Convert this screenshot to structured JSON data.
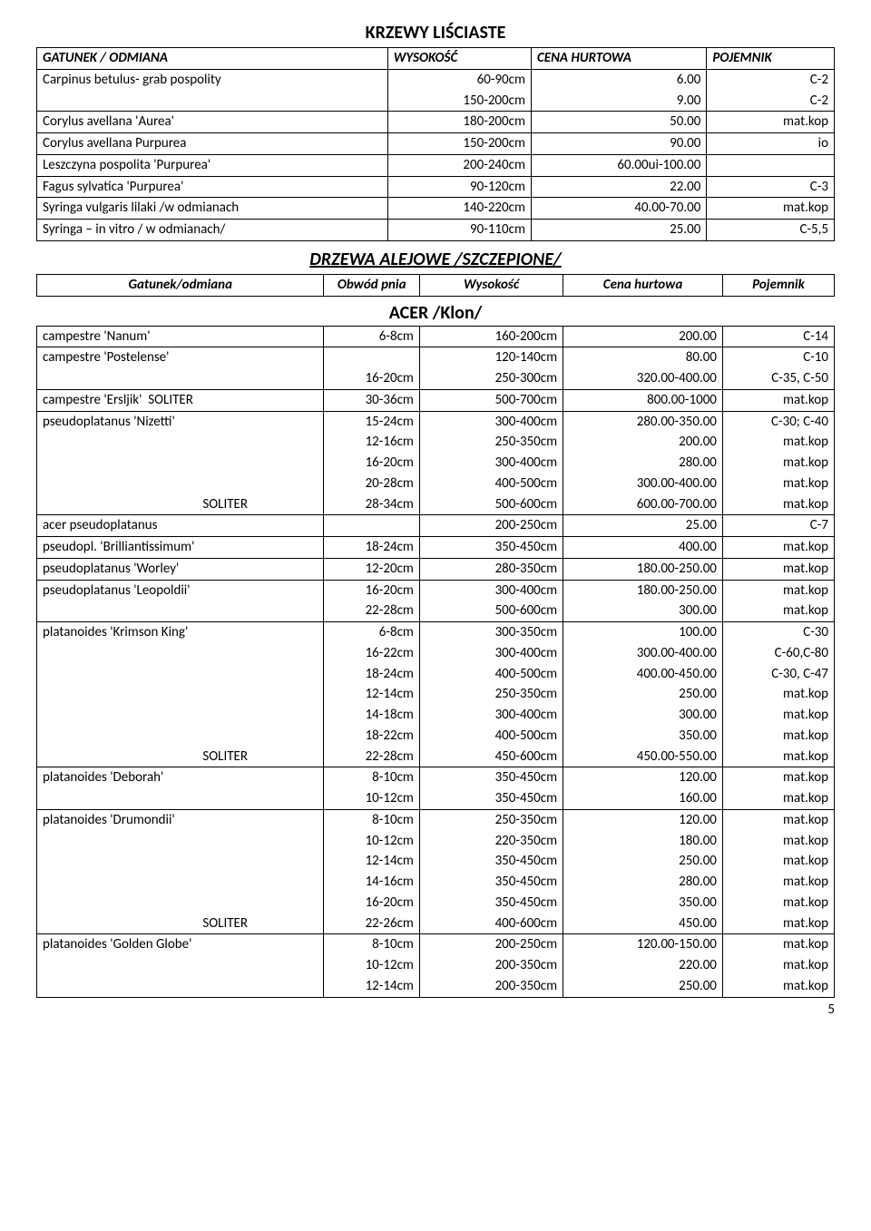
{
  "section1": {
    "title": "KRZEWY LIŚCIASTE",
    "headers": [
      "GATUNEK / ODMIANA",
      "WYSOKOŚĆ",
      "CENA HURTOWA",
      "POJEMNIK"
    ],
    "rows": [
      {
        "name": "Carpinus betulus- grab pospolity",
        "h": "60-90cm",
        "c": "6.00",
        "p": "C-2",
        "tb": true,
        "bb": false
      },
      {
        "name": "",
        "h": "150-200cm",
        "c": "9.00",
        "p": "C-2",
        "tb": false,
        "bb": true
      },
      {
        "name": "Corylus avellana 'Aurea'",
        "h": "180-200cm",
        "c": "50.00",
        "p": "mat.kop",
        "tb": true,
        "bb": true
      },
      {
        "name": "Corylus avellana Purpurea",
        "h": "150-200cm",
        "c": "90.00",
        "p": "io",
        "tb": true,
        "bb": true
      },
      {
        "name": "Leszczyna pospolita 'Purpurea'",
        "h": "200-240cm",
        "c": "60.00ui-100.00",
        "p": "",
        "tb": true,
        "bb": true
      },
      {
        "name": "Fagus sylvatica 'Purpurea'",
        "h": "90-120cm",
        "c": "22.00",
        "p": "C-3",
        "tb": true,
        "bb": true
      },
      {
        "name": "Syringa vulgaris lilaki /w odmianach",
        "h": "140-220cm",
        "c": "40.00-70.00",
        "p": "mat.kop",
        "tb": true,
        "bb": true
      },
      {
        "name": "Syringa – in vitro / w odmianach/",
        "h": "90-110cm",
        "c": "25.00",
        "p": "C-5,5",
        "tb": true,
        "bb": true
      }
    ]
  },
  "section2": {
    "title": "DRZEWA ALEJOWE /SZCZEPIONE/",
    "headers": [
      "Gatunek/odmiana",
      "Obwód pnia",
      "Wysokość",
      "Cena hurtowa",
      "Pojemnik"
    ]
  },
  "section3": {
    "title": "ACER /Klon/",
    "rows": [
      {
        "name": "campestre 'Nanum'",
        "o": "6-8cm",
        "w": "160-200cm",
        "c": "200.00",
        "p": "C-14",
        "tb": true,
        "bb": true
      },
      {
        "name": "campestre 'Postelense'",
        "o": "",
        "w": "120-140cm",
        "c": "80.00",
        "p": "C-10",
        "tb": true,
        "bb": false
      },
      {
        "name": "",
        "o": "16-20cm",
        "w": "250-300cm",
        "c": "320.00-400.00",
        "p": "C-35, C-50",
        "tb": false,
        "bb": true
      },
      {
        "name": "campestre 'Ersljik'  SOLITER",
        "o": "30-36cm",
        "w": "500-700cm",
        "c": "800.00-1000",
        "p": "mat.kop",
        "tb": true,
        "bb": true
      },
      {
        "name": "pseudoplatanus 'Nizetti'",
        "o": "15-24cm",
        "w": "300-400cm",
        "c": "280.00-350.00",
        "p": "C-30; C-40",
        "tb": true,
        "bb": false
      },
      {
        "name": "",
        "o": "12-16cm",
        "w": "250-350cm",
        "c": "200.00",
        "p": "mat.kop",
        "tb": false,
        "bb": false
      },
      {
        "name": "",
        "o": "16-20cm",
        "w": "300-400cm",
        "c": "280.00",
        "p": "mat.kop",
        "tb": false,
        "bb": false
      },
      {
        "name": "",
        "o": "20-28cm",
        "w": "400-500cm",
        "c": "300.00-400.00",
        "p": "mat.kop",
        "tb": false,
        "bb": false
      },
      {
        "name": "                                                    SOLITER",
        "o": "28-34cm",
        "w": "500-600cm",
        "c": "600.00-700.00",
        "p": "mat.kop",
        "tb": false,
        "bb": true
      },
      {
        "name": "acer pseudoplatanus",
        "o": "",
        "w": "200-250cm",
        "c": "25.00",
        "p": "C-7",
        "tb": true,
        "bb": true
      },
      {
        "name": "pseudopl. 'Brilliantissimum'",
        "o": "18-24cm",
        "w": "350-450cm",
        "c": "400.00",
        "p": "mat.kop",
        "tb": true,
        "bb": true
      },
      {
        "name": "pseudoplatanus 'Worley'",
        "o": "12-20cm",
        "w": "280-350cm",
        "c": "180.00-250.00",
        "p": "mat.kop",
        "tb": true,
        "bb": true
      },
      {
        "name": "pseudoplatanus 'Leopoldii'",
        "o": "16-20cm",
        "w": "300-400cm",
        "c": "180.00-250.00",
        "p": "mat.kop",
        "tb": true,
        "bb": false
      },
      {
        "name": "",
        "o": "22-28cm",
        "w": "500-600cm",
        "c": "300.00",
        "p": "mat.kop",
        "tb": false,
        "bb": true
      },
      {
        "name": "platanoides 'Krimson King'",
        "o": "6-8cm",
        "w": "300-350cm",
        "c": "100.00",
        "p": "C-30",
        "tb": true,
        "bb": false
      },
      {
        "name": "",
        "o": "16-22cm",
        "w": "300-400cm",
        "c": "300.00-400.00",
        "p": "C-60,C-80",
        "tb": false,
        "bb": false
      },
      {
        "name": "",
        "o": "18-24cm",
        "w": "400-500cm",
        "c": "400.00-450.00",
        "p": "C-30, C-47",
        "tb": false,
        "bb": false
      },
      {
        "name": "",
        "o": "12-14cm",
        "w": "250-350cm",
        "c": "250.00",
        "p": "mat.kop",
        "tb": false,
        "bb": false
      },
      {
        "name": "",
        "o": "14-18cm",
        "w": "300-400cm",
        "c": "300.00",
        "p": "mat.kop",
        "tb": false,
        "bb": false
      },
      {
        "name": "",
        "o": "18-22cm",
        "w": "400-500cm",
        "c": "350.00",
        "p": "mat.kop",
        "tb": false,
        "bb": false
      },
      {
        "name": "                                                    SOLITER",
        "o": "22-28cm",
        "w": "450-600cm",
        "c": "450.00-550.00",
        "p": "mat.kop",
        "tb": false,
        "bb": true
      },
      {
        "name": "platanoides 'Deborah'",
        "o": "8-10cm",
        "w": "350-450cm",
        "c": "120.00",
        "p": "mat.kop",
        "tb": true,
        "bb": false
      },
      {
        "name": "",
        "o": "10-12cm",
        "w": "350-450cm",
        "c": "160.00",
        "p": "mat.kop",
        "tb": false,
        "bb": true
      },
      {
        "name": "platanoides 'Drumondii'",
        "o": "8-10cm",
        "w": "250-350cm",
        "c": "120.00",
        "p": "mat.kop",
        "tb": true,
        "bb": false
      },
      {
        "name": "",
        "o": "10-12cm",
        "w": "220-350cm",
        "c": "180.00",
        "p": "mat.kop",
        "tb": false,
        "bb": false
      },
      {
        "name": "",
        "o": "12-14cm",
        "w": "350-450cm",
        "c": "250.00",
        "p": "mat.kop",
        "tb": false,
        "bb": false
      },
      {
        "name": "",
        "o": "14-16cm",
        "w": "350-450cm",
        "c": "280.00",
        "p": "mat.kop",
        "tb": false,
        "bb": false
      },
      {
        "name": "",
        "o": "16-20cm",
        "w": "350-450cm",
        "c": "350.00",
        "p": "mat.kop",
        "tb": false,
        "bb": false
      },
      {
        "name": "                                                    SOLITER",
        "o": "22-26cm",
        "w": "400-600cm",
        "c": "450.00",
        "p": "mat.kop",
        "tb": false,
        "bb": true
      },
      {
        "name": "platanoides 'Golden Globe'",
        "o": "8-10cm",
        "w": "200-250cm",
        "c": "120.00-150.00",
        "p": "mat.kop",
        "tb": true,
        "bb": false
      },
      {
        "name": "",
        "o": "10-12cm",
        "w": "200-350cm",
        "c": "220.00",
        "p": "mat.kop",
        "tb": false,
        "bb": false
      },
      {
        "name": "",
        "o": "12-14cm",
        "w": "200-350cm",
        "c": "250.00",
        "p": "mat.kop",
        "tb": false,
        "bb": true
      }
    ]
  },
  "pageNumber": "5"
}
